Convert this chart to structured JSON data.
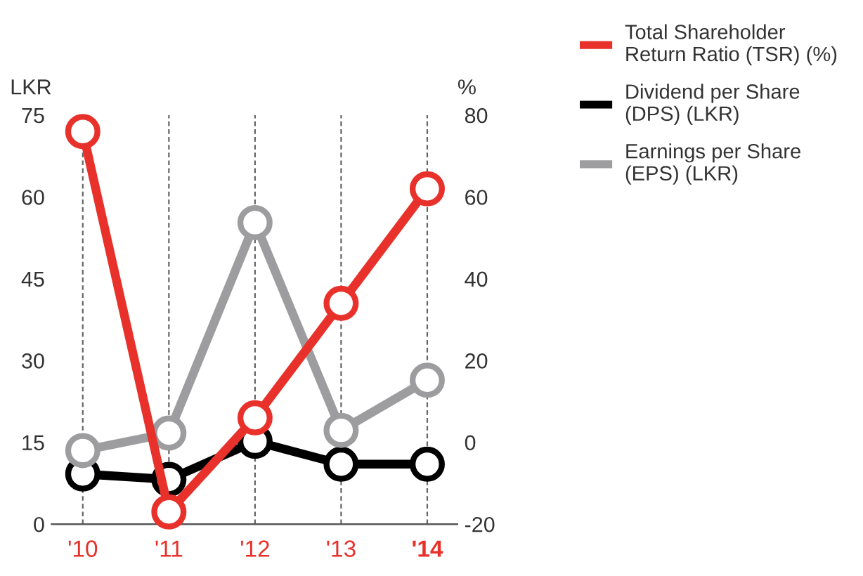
{
  "chart_data": {
    "type": "line",
    "ylabel": "LKR",
    "y2label": "%",
    "categories": [
      "'10",
      "'11",
      "'12",
      "'13",
      "'14"
    ],
    "series": [
      {
        "name": "Total Shareholder Return Ratio (TSR) (%)",
        "color": "#e8312a",
        "axis": "y2",
        "values": [
          76,
          -17,
          6,
          34,
          62
        ]
      },
      {
        "name": "Dividend per Share (DPS) (LKR)",
        "color": "#000000",
        "values": [
          9.2,
          8.2,
          15.2,
          11.0,
          11.0
        ]
      },
      {
        "name": "Earnings per Share (EPS) (LKR)",
        "color": "#9d9d9f",
        "values": [
          13.5,
          16.7,
          55.3,
          17.2,
          26.4
        ]
      }
    ],
    "ylim": [
      0,
      75
    ],
    "yticks": [
      0,
      15,
      30,
      45,
      60,
      75
    ],
    "y2lim": [
      -20,
      80
    ],
    "y2ticks": [
      -20,
      0,
      20,
      40,
      60,
      80
    ],
    "grid": "x",
    "legend": "right",
    "marker": "circle",
    "line_style": "solid"
  }
}
